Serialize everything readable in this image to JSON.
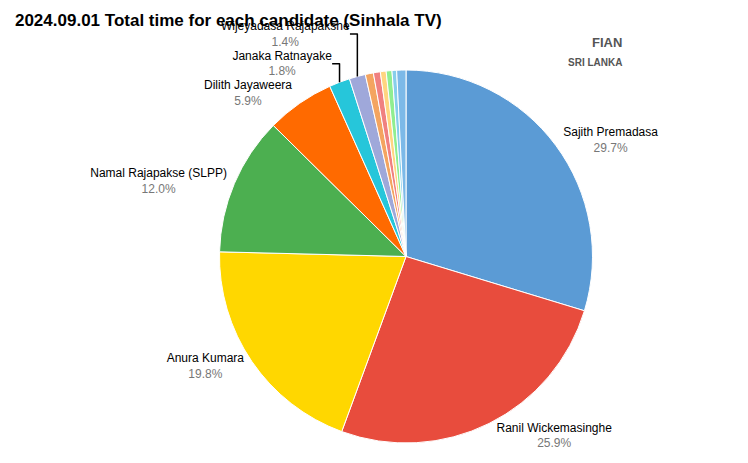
{
  "chart_data": {
    "type": "pie",
    "title": "2024.09.01 Total time for each candidate (Sinhala TV)",
    "categories": [
      "Sajith Premadasa",
      "Ranil Wickemasinghe",
      "Anura Kumara",
      "Namal Rajapakse (SLPP)",
      "Dilith Jayaweera",
      "Janaka Ratnayake",
      "Wijeyadasa Rajapakshe",
      null,
      null,
      null,
      null,
      null,
      null
    ],
    "values": [
      29.7,
      25.9,
      19.8,
      12.0,
      5.9,
      1.8,
      1.4,
      0.7,
      0.6,
      0.5,
      0.5,
      0.4,
      0.8
    ],
    "value_labels": [
      "29.7%",
      "25.9%",
      "19.8%",
      "12.0%",
      "5.9%",
      "1.8%",
      "1.4%",
      null,
      null,
      null,
      null,
      null,
      null
    ],
    "colors": [
      "#5B9BD5",
      "#E84C3D",
      "#FFD700",
      "#4CAF50",
      "#FF6A00",
      "#26C6DA",
      "#9FA8DA",
      "#F4A460",
      "#F08080",
      "#FFD580",
      "#90EE90",
      "#87CEEB",
      "#7CB9E8"
    ],
    "data_labels": true,
    "annotations": [
      "FIAN",
      "SRI LANKA"
    ]
  }
}
